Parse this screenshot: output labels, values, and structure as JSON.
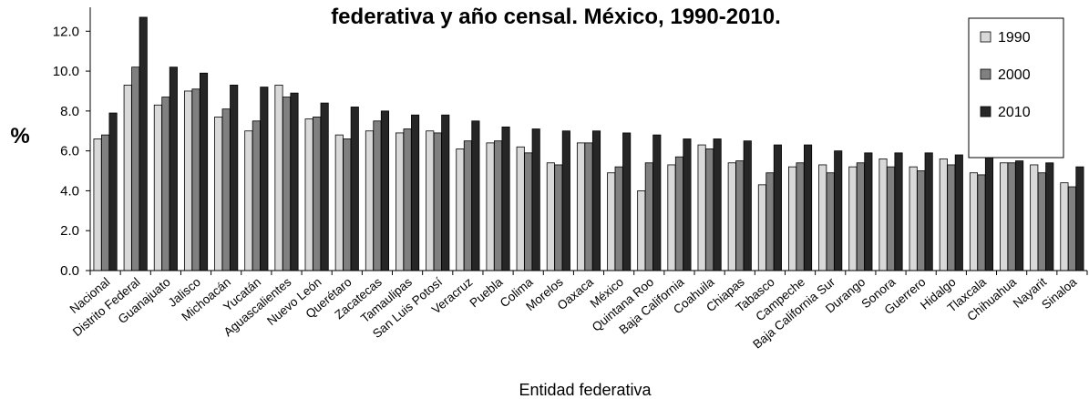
{
  "chart_data": {
    "type": "bar",
    "title": "federativa y año censal. México, 1990-2010.",
    "xlabel": "Entidad federativa",
    "ylabel": "%",
    "ylim": [
      0,
      13.2
    ],
    "yticks": [
      "0.0",
      "2.0",
      "4.0",
      "6.0",
      "8.0",
      "10.0",
      "12.0"
    ],
    "ytick_values": [
      0,
      2,
      4,
      6,
      8,
      10,
      12
    ],
    "grid": false,
    "legend_position": "top-right",
    "categories": [
      "Nacional",
      "Distrito Federal",
      "Guanajuato",
      "Jalisco",
      "Michoacán",
      "Yucatán",
      "Aguascalientes",
      "Nuevo León",
      "Querétaro",
      "Zacatecas",
      "Tamaulipas",
      "San Luis Potosí",
      "Veracruz",
      "Puebla",
      "Colima",
      "Morelos",
      "Oaxaca",
      "México",
      "Quintana Roo",
      "Baja California",
      "Coahuila",
      "Chiapas",
      "Tabasco",
      "Campeche",
      "Baja California Sur",
      "Durango",
      "Sonora",
      "Guerrero",
      "Hidalgo",
      "Tlaxcala",
      "Chihuahua",
      "Nayarit",
      "Sinaloa"
    ],
    "series": [
      {
        "name": "1990",
        "color": "#d9d9d9",
        "values": [
          6.6,
          9.3,
          8.3,
          9.0,
          7.7,
          7.0,
          9.3,
          7.6,
          6.8,
          7.0,
          6.9,
          7.0,
          6.1,
          6.4,
          6.2,
          5.4,
          6.4,
          4.9,
          4.0,
          5.3,
          6.3,
          5.4,
          4.3,
          5.2,
          5.3,
          5.2,
          5.6,
          5.2,
          5.6,
          4.9,
          5.4,
          5.3,
          4.4
        ]
      },
      {
        "name": "2000",
        "color": "#808080",
        "values": [
          6.8,
          10.2,
          8.7,
          9.1,
          8.1,
          7.5,
          8.7,
          7.7,
          6.6,
          7.5,
          7.1,
          6.9,
          6.5,
          6.5,
          5.9,
          5.3,
          6.4,
          5.2,
          5.4,
          5.7,
          6.1,
          5.5,
          4.9,
          5.4,
          4.9,
          5.4,
          5.2,
          5.0,
          5.3,
          4.8,
          5.4,
          4.9,
          4.2
        ]
      },
      {
        "name": "2010",
        "color": "#262626",
        "values": [
          7.9,
          12.7,
          10.2,
          9.9,
          9.3,
          9.2,
          8.9,
          8.4,
          8.2,
          8.0,
          7.8,
          7.8,
          7.5,
          7.2,
          7.1,
          7.0,
          7.0,
          6.9,
          6.8,
          6.6,
          6.6,
          6.5,
          6.3,
          6.3,
          6.0,
          5.9,
          5.9,
          5.9,
          5.8,
          5.7,
          5.5,
          5.4,
          5.2
        ]
      }
    ]
  }
}
